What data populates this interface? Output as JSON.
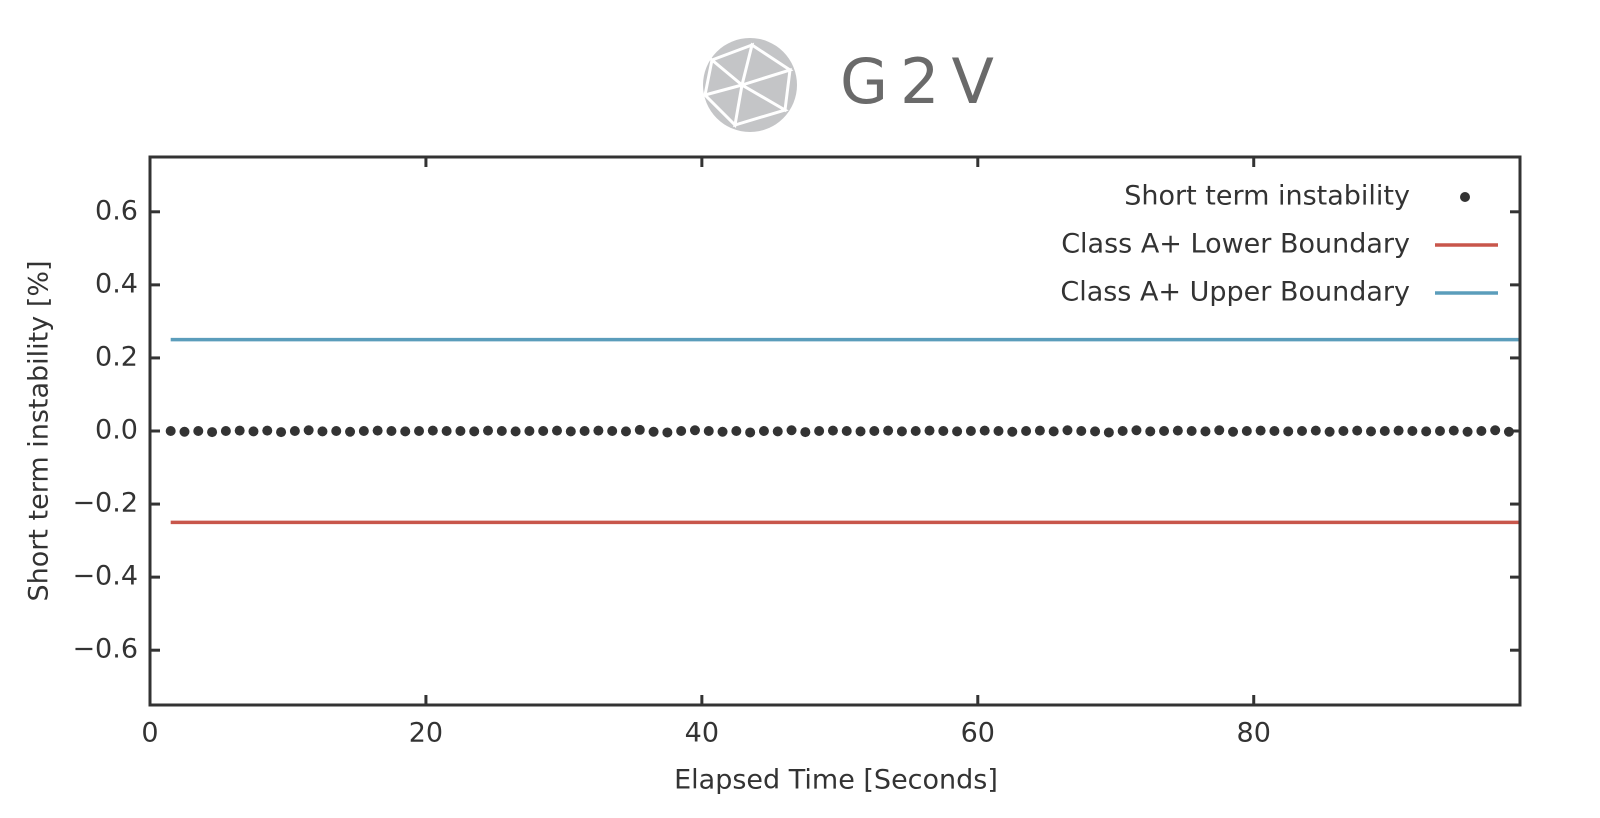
{
  "logo_text": "G2V",
  "chart_data": {
    "type": "scatter",
    "xlabel": "Elapsed Time [Seconds]",
    "ylabel": "Short term instability [%]",
    "xlim": [
      0,
      99.3
    ],
    "ylim": [
      -0.75,
      0.75
    ],
    "xticks": [
      0,
      20,
      40,
      60,
      80
    ],
    "yticks": [
      {
        "value": -0.6,
        "label": "−0.6"
      },
      {
        "value": -0.4,
        "label": "−0.4"
      },
      {
        "value": -0.2,
        "label": "−0.2"
      },
      {
        "value": 0,
        "label": "0.0"
      },
      0.2,
      0.4,
      0.6
    ],
    "legend": "upper right",
    "series": [
      {
        "name": "Short term instability",
        "type": "scatter",
        "color": "#333333",
        "x": [
          1.5,
          2.5,
          3.5,
          4.5,
          5.5,
          6.5,
          7.5,
          8.5,
          9.5,
          10.5,
          11.5,
          12.5,
          13.5,
          14.5,
          15.5,
          16.5,
          17.5,
          18.5,
          19.5,
          20.5,
          21.5,
          22.5,
          23.5,
          24.5,
          25.5,
          26.5,
          27.5,
          28.5,
          29.5,
          30.5,
          31.5,
          32.5,
          33.5,
          34.5,
          35.5,
          36.5,
          37.5,
          38.5,
          39.5,
          40.5,
          41.5,
          42.5,
          43.5,
          44.5,
          45.5,
          46.5,
          47.5,
          48.5,
          49.5,
          50.5,
          51.5,
          52.5,
          53.5,
          54.5,
          55.5,
          56.5,
          57.5,
          58.5,
          59.5,
          60.5,
          61.5,
          62.5,
          63.5,
          64.5,
          65.5,
          66.5,
          67.5,
          68.5,
          69.5,
          70.5,
          71.5,
          72.5,
          73.5,
          74.5,
          75.5,
          76.5,
          77.5,
          78.5,
          79.5,
          80.5,
          81.5,
          82.5,
          83.5,
          84.5,
          85.5,
          86.5,
          87.5,
          88.5,
          89.5,
          90.5,
          91.5,
          92.5,
          93.5,
          94.5,
          95.5,
          96.5,
          97.5,
          98.5
        ],
        "values": [
          0,
          -0.002,
          0,
          -0.003,
          0,
          0.001,
          -0.001,
          0.001,
          -0.003,
          0,
          0.002,
          -0.001,
          0,
          -0.002,
          0,
          0.001,
          0,
          -0.001,
          0,
          0.001,
          0,
          0,
          -0.001,
          0.001,
          0,
          -0.001,
          0,
          0,
          0.001,
          -0.001,
          0,
          0.001,
          0,
          -0.001,
          0.003,
          -0.002,
          -0.004,
          0,
          0.002,
          0,
          -0.002,
          0,
          -0.004,
          0,
          -0.001,
          0.002,
          -0.003,
          0,
          0.001,
          0,
          -0.001,
          0,
          0.001,
          -0.001,
          0,
          0.001,
          0,
          -0.001,
          0,
          0.001,
          0,
          -0.002,
          0,
          0.001,
          -0.001,
          0.002,
          0,
          -0.001,
          -0.004,
          0,
          0.002,
          -0.001,
          0,
          0.001,
          0,
          -0.001,
          0.002,
          -0.002,
          0,
          0.001,
          0,
          -0.001,
          0,
          0.001,
          -0.002,
          0,
          0.001,
          -0.001,
          0,
          0.001,
          0,
          -0.001,
          0,
          0.001,
          -0.002,
          0,
          0.002,
          -0.002
        ]
      },
      {
        "name": "Class A+ Lower Boundary",
        "type": "line",
        "color": "#c8564b",
        "x": [
          1.5,
          99.3
        ],
        "values": [
          -0.25,
          -0.25
        ]
      },
      {
        "name": "Class A+ Upper Boundary",
        "type": "line",
        "color": "#5b9dbb",
        "x": [
          1.5,
          99.3
        ],
        "values": [
          0.25,
          0.25
        ]
      }
    ]
  }
}
